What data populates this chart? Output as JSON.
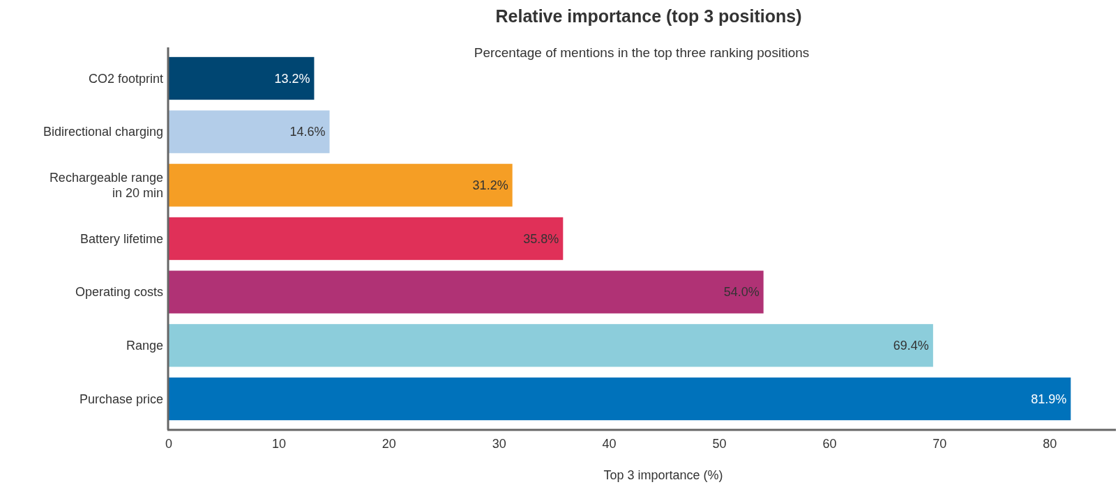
{
  "chart_data": {
    "type": "bar",
    "orientation": "horizontal",
    "title": "Relative importance (top 3 positions)",
    "subtitle": "Percentage of mentions in the top three ranking positions",
    "xlabel": "Top 3 importance (%)",
    "categories": [
      "CO2 footprint",
      "Bidirectional charging",
      "Rechargeable range\nin 20 min",
      "Battery lifetime",
      "Operating costs",
      "Range",
      "Purchase price"
    ],
    "values": [
      13.2,
      14.6,
      31.2,
      35.8,
      54.0,
      69.4,
      81.9
    ],
    "value_labels": [
      "13.2%",
      "14.6%",
      "31.2%",
      "35.8%",
      "54.0%",
      "69.4%",
      "81.9%"
    ],
    "colors": [
      "#004672",
      "#b3cde9",
      "#f59e25",
      "#e03058",
      "#b03275",
      "#8ccddb",
      "#0072bb"
    ],
    "xlim": [
      0,
      86
    ],
    "xticks": [
      0,
      10,
      20,
      30,
      40,
      50,
      60,
      70,
      80
    ],
    "grid": false
  }
}
